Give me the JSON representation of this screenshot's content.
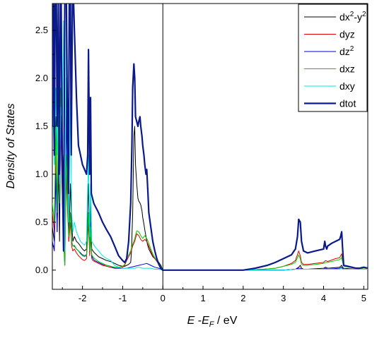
{
  "chart_data": {
    "type": "line",
    "title": "",
    "xlabel": {
      "italic_main": "E",
      "sep": " -",
      "italic_sub_base": "E",
      "sub": "F",
      "unit": " / eV"
    },
    "ylabel": "Density of States",
    "xlim": [
      -2.75,
      5.1
    ],
    "ylim": [
      -0.2,
      2.78
    ],
    "x_ticks": [
      -2,
      -1,
      0,
      1,
      2,
      3,
      4,
      5
    ],
    "x_tick_labels": [
      "-2",
      "-1",
      "0",
      "1",
      "2",
      "3",
      "4",
      "5"
    ],
    "y_ticks": [
      0.0,
      0.5,
      1.0,
      1.5,
      2.0,
      2.5
    ],
    "y_tick_labels": [
      "0.0",
      "0.5",
      "1.0",
      "1.5",
      "2.0",
      "2.5"
    ],
    "fermi_line_x": 0,
    "grid": false,
    "legend": {
      "position": "top-right",
      "entries": [
        {
          "base": "dx",
          "sup": "2",
          "mid": "-y",
          "sup2": "2"
        },
        {
          "base": "dyz"
        },
        {
          "base": "dz",
          "sup": "2"
        },
        {
          "base": "dxz"
        },
        {
          "base": "dxy"
        },
        {
          "base": "dtot"
        }
      ]
    },
    "series": [
      {
        "color": "#000000",
        "width": 1,
        "x": [
          -2.75,
          -2.7,
          -2.66,
          -2.63,
          -2.6,
          -2.57,
          -2.54,
          -2.5,
          -2.47,
          -2.44,
          -2.4,
          -2.37,
          -2.34,
          -2.3,
          -2.27,
          -2.24,
          -2.2,
          -2.15,
          -2.1,
          -2.05,
          -2.0,
          -1.95,
          -1.9,
          -1.85,
          -1.82,
          -1.8,
          -1.77,
          -1.74,
          -1.7,
          -1.6,
          -1.5,
          -1.4,
          -1.3,
          -1.2,
          -1.1,
          -1.0,
          -0.95,
          -0.9,
          -0.85,
          -0.8,
          -0.78,
          -0.75,
          -0.72,
          -0.7,
          -0.68,
          -0.65,
          -0.62,
          -0.6,
          -0.57,
          -0.55,
          -0.52,
          -0.5,
          -0.47,
          -0.45,
          -0.42,
          -0.4,
          -0.37,
          -0.35,
          -0.3,
          -0.25,
          -0.2,
          -0.15,
          -0.1,
          -0.05,
          0.0,
          0.5,
          1.0,
          1.5,
          2.0,
          2.5,
          3.0,
          3.3,
          3.38,
          3.42,
          3.45,
          3.5,
          3.6,
          4.0,
          4.05,
          4.1,
          4.4,
          4.45,
          4.47,
          4.5,
          4.8,
          5.1
        ],
        "y": [
          0.45,
          0.3,
          1.6,
          0.4,
          1.1,
          0.3,
          1.8,
          0.9,
          1.2,
          0.1,
          2.0,
          0.9,
          0.3,
          0.9,
          0.5,
          0.3,
          0.35,
          0.3,
          0.28,
          0.25,
          0.22,
          0.2,
          0.22,
          0.9,
          0.3,
          0.7,
          0.22,
          0.2,
          0.18,
          0.14,
          0.12,
          0.1,
          0.09,
          0.07,
          0.05,
          0.04,
          0.04,
          0.05,
          0.06,
          0.08,
          0.2,
          0.6,
          1.4,
          1.5,
          1.1,
          0.9,
          0.75,
          0.72,
          0.7,
          0.68,
          0.62,
          0.55,
          0.48,
          0.42,
          0.35,
          0.3,
          0.25,
          0.22,
          0.18,
          0.14,
          0.12,
          0.1,
          0.08,
          0.05,
          0.0,
          0.0,
          0.0,
          0.0,
          0.0,
          0.0,
          0.0,
          0.01,
          0.03,
          0.05,
          0.02,
          0.01,
          0.01,
          0.02,
          0.03,
          0.02,
          0.03,
          0.05,
          0.03,
          0.02,
          0.01,
          0.01
        ]
      },
      {
        "color": "#e00000",
        "width": 1,
        "x": [
          -2.75,
          -2.7,
          -2.66,
          -2.63,
          -2.6,
          -2.57,
          -2.54,
          -2.5,
          -2.47,
          -2.44,
          -2.4,
          -2.37,
          -2.34,
          -2.3,
          -2.27,
          -2.24,
          -2.2,
          -2.15,
          -2.1,
          -2.05,
          -2.0,
          -1.95,
          -1.9,
          -1.85,
          -1.82,
          -1.8,
          -1.77,
          -1.74,
          -1.7,
          -1.6,
          -1.5,
          -1.4,
          -1.3,
          -1.2,
          -1.1,
          -1.0,
          -0.95,
          -0.9,
          -0.85,
          -0.8,
          -0.75,
          -0.7,
          -0.65,
          -0.6,
          -0.55,
          -0.5,
          -0.45,
          -0.4,
          -0.35,
          -0.3,
          -0.25,
          -0.2,
          -0.1,
          0.0,
          0.5,
          1.0,
          1.5,
          2.0,
          2.5,
          2.8,
          3.0,
          3.2,
          3.3,
          3.38,
          3.42,
          3.45,
          3.5,
          3.6,
          3.8,
          4.0,
          4.05,
          4.1,
          4.3,
          4.4,
          4.45,
          4.47,
          4.5,
          4.8,
          5.1
        ],
        "y": [
          0.6,
          0.4,
          1.2,
          0.5,
          1.4,
          0.6,
          1.5,
          0.7,
          0.3,
          0.05,
          1.0,
          0.6,
          0.3,
          0.5,
          0.25,
          0.2,
          0.22,
          0.18,
          0.15,
          0.13,
          0.11,
          0.1,
          0.12,
          0.5,
          0.15,
          0.35,
          0.12,
          0.1,
          0.09,
          0.07,
          0.05,
          0.04,
          0.03,
          0.02,
          0.02,
          0.03,
          0.05,
          0.1,
          0.14,
          0.18,
          0.25,
          0.3,
          0.38,
          0.36,
          0.32,
          0.3,
          0.32,
          0.3,
          0.25,
          0.2,
          0.15,
          0.12,
          0.06,
          0.0,
          0.0,
          0.0,
          0.0,
          0.0,
          0.01,
          0.02,
          0.04,
          0.07,
          0.1,
          0.2,
          0.15,
          0.08,
          0.06,
          0.06,
          0.07,
          0.08,
          0.1,
          0.09,
          0.12,
          0.13,
          0.17,
          0.1,
          0.05,
          0.02,
          0.01
        ]
      },
      {
        "color": "#0000dd",
        "width": 1,
        "x": [
          -2.75,
          -2.7,
          -2.66,
          -2.63,
          -2.6,
          -2.57,
          -2.54,
          -2.5,
          -2.47,
          -2.44,
          -2.4,
          -2.37,
          -2.34,
          -2.3,
          -2.27,
          -2.24,
          -2.2,
          -2.15,
          -2.1,
          -2.05,
          -2.0,
          -1.95,
          -1.9,
          -1.85,
          -1.82,
          -1.8,
          -1.77,
          -1.74,
          -1.7,
          -1.6,
          -1.5,
          -1.4,
          -1.3,
          -1.2,
          -1.1,
          -1.0,
          -0.9,
          -0.8,
          -0.7,
          -0.6,
          -0.5,
          -0.4,
          -0.3,
          -0.2,
          -0.1,
          0.0,
          0.5,
          1.0,
          1.5,
          2.0,
          2.5,
          3.0,
          3.3,
          3.38,
          3.42,
          3.45,
          3.5,
          3.6,
          4.0,
          4.05,
          4.1,
          4.4,
          4.45,
          4.47,
          4.5,
          4.8,
          5.1
        ],
        "y": [
          0.3,
          0.2,
          1.0,
          0.4,
          1.3,
          0.5,
          1.6,
          0.8,
          0.5,
          0.05,
          1.7,
          0.8,
          0.4,
          0.6,
          0.3,
          0.25,
          0.25,
          0.22,
          0.2,
          0.18,
          0.16,
          0.15,
          0.16,
          0.6,
          0.2,
          0.5,
          0.15,
          0.12,
          0.1,
          0.08,
          0.06,
          0.05,
          0.04,
          0.02,
          0.02,
          0.02,
          0.02,
          0.03,
          0.04,
          0.05,
          0.06,
          0.07,
          0.05,
          0.03,
          0.02,
          0.0,
          0.0,
          0.0,
          0.0,
          0.0,
          0.0,
          0.0,
          0.01,
          0.02,
          0.02,
          0.01,
          0.01,
          0.01,
          0.01,
          0.02,
          0.01,
          0.02,
          0.03,
          0.02,
          0.01,
          0.01,
          0.01
        ]
      },
      {
        "color": "#00cc00",
        "width": 1,
        "x": [
          -2.75,
          -2.7,
          -2.66,
          -2.63,
          -2.6,
          -2.57,
          -2.54,
          -2.5,
          -2.47,
          -2.44,
          -2.4,
          -2.37,
          -2.34,
          -2.3,
          -2.27,
          -2.24,
          -2.2,
          -2.15,
          -2.1,
          -2.05,
          -2.0,
          -1.95,
          -1.9,
          -1.85,
          -1.82,
          -1.8,
          -1.77,
          -1.74,
          -1.7,
          -1.6,
          -1.5,
          -1.4,
          -1.3,
          -1.2,
          -1.1,
          -1.0,
          -0.95,
          -0.9,
          -0.85,
          -0.8,
          -0.75,
          -0.7,
          -0.65,
          -0.6,
          -0.55,
          -0.5,
          -0.45,
          -0.4,
          -0.35,
          -0.3,
          -0.25,
          -0.2,
          -0.1,
          0.0,
          0.5,
          1.0,
          1.5,
          2.0,
          2.5,
          2.8,
          3.0,
          3.2,
          3.3,
          3.38,
          3.42,
          3.45,
          3.5,
          3.6,
          3.8,
          4.0,
          4.05,
          4.1,
          4.3,
          4.4,
          4.45,
          4.47,
          4.5,
          4.8,
          5.1
        ],
        "y": [
          0.7,
          0.5,
          1.5,
          0.6,
          1.6,
          0.7,
          1.9,
          1.0,
          0.4,
          0.05,
          1.2,
          0.7,
          0.35,
          0.6,
          0.3,
          0.25,
          0.26,
          0.22,
          0.2,
          0.17,
          0.15,
          0.14,
          0.15,
          0.6,
          0.2,
          0.45,
          0.16,
          0.14,
          0.12,
          0.09,
          0.07,
          0.05,
          0.04,
          0.03,
          0.03,
          0.04,
          0.06,
          0.12,
          0.16,
          0.2,
          0.27,
          0.33,
          0.41,
          0.4,
          0.36,
          0.33,
          0.36,
          0.33,
          0.28,
          0.22,
          0.17,
          0.13,
          0.07,
          0.0,
          0.0,
          0.0,
          0.0,
          0.0,
          0.01,
          0.02,
          0.04,
          0.06,
          0.08,
          0.16,
          0.12,
          0.06,
          0.05,
          0.05,
          0.06,
          0.07,
          0.08,
          0.08,
          0.1,
          0.11,
          0.13,
          0.09,
          0.04,
          0.02,
          0.01
        ]
      },
      {
        "color": "#00e5e5",
        "width": 1,
        "x": [
          -2.75,
          -2.7,
          -2.66,
          -2.63,
          -2.6,
          -2.57,
          -2.54,
          -2.5,
          -2.47,
          -2.44,
          -2.4,
          -2.37,
          -2.34,
          -2.3,
          -2.27,
          -2.24,
          -2.2,
          -2.15,
          -2.1,
          -2.05,
          -2.0,
          -1.95,
          -1.9,
          -1.85,
          -1.82,
          -1.8,
          -1.77,
          -1.74,
          -1.7,
          -1.6,
          -1.5,
          -1.4,
          -1.3,
          -1.2,
          -1.1,
          -1.0,
          -0.9,
          -0.8,
          -0.7,
          -0.6,
          -0.5,
          -0.4,
          -0.3,
          -0.2,
          -0.1,
          0.0,
          0.5,
          1.0,
          1.5,
          2.0,
          2.5,
          3.0,
          3.3,
          3.38,
          3.42,
          3.45,
          3.5,
          3.6,
          4.0,
          4.05,
          4.1,
          4.4,
          4.45,
          4.47,
          4.5,
          4.8,
          5.1
        ],
        "y": [
          1.85,
          1.1,
          1.9,
          1.2,
          2.0,
          0.9,
          1.7,
          1.5,
          2.6,
          0.2,
          2.7,
          1.3,
          0.5,
          1.8,
          0.6,
          0.4,
          0.5,
          0.4,
          0.35,
          0.3,
          0.28,
          0.26,
          0.3,
          1.2,
          0.35,
          0.9,
          0.3,
          0.28,
          0.25,
          0.2,
          0.15,
          0.12,
          0.1,
          0.05,
          0.03,
          0.02,
          0.02,
          0.02,
          0.02,
          0.03,
          0.02,
          0.02,
          0.02,
          0.01,
          0.01,
          0.0,
          0.0,
          0.0,
          0.0,
          0.0,
          0.0,
          0.0,
          0.01,
          0.01,
          0.01,
          0.01,
          0.01,
          0.01,
          0.01,
          0.01,
          0.01,
          0.01,
          0.02,
          0.01,
          0.01,
          0.01,
          0.01
        ]
      },
      {
        "color": "#0a1a8a",
        "width": 2.2,
        "x": [
          -2.75,
          -2.72,
          -2.7,
          -2.68,
          -2.65,
          -2.63,
          -2.6,
          -2.58,
          -2.55,
          -2.53,
          -2.5,
          -2.47,
          -2.44,
          -2.4,
          -2.38,
          -2.35,
          -2.33,
          -2.3,
          -2.28,
          -2.25,
          -2.22,
          -2.2,
          -2.15,
          -2.1,
          -2.05,
          -2.0,
          -1.95,
          -1.9,
          -1.87,
          -1.85,
          -1.82,
          -1.8,
          -1.78,
          -1.75,
          -1.72,
          -1.7,
          -1.6,
          -1.5,
          -1.4,
          -1.3,
          -1.2,
          -1.1,
          -1.0,
          -0.95,
          -0.9,
          -0.85,
          -0.8,
          -0.77,
          -0.75,
          -0.72,
          -0.7,
          -0.68,
          -0.65,
          -0.62,
          -0.6,
          -0.57,
          -0.55,
          -0.52,
          -0.5,
          -0.47,
          -0.45,
          -0.42,
          -0.4,
          -0.37,
          -0.35,
          -0.3,
          -0.25,
          -0.2,
          -0.15,
          -0.1,
          -0.05,
          0.0,
          0.5,
          1.0,
          1.5,
          2.0,
          2.3,
          2.6,
          2.8,
          3.0,
          3.2,
          3.3,
          3.35,
          3.38,
          3.42,
          3.45,
          3.5,
          3.6,
          3.8,
          4.0,
          4.03,
          4.05,
          4.08,
          4.1,
          4.2,
          4.3,
          4.4,
          4.43,
          4.45,
          4.47,
          4.5,
          4.7,
          4.8,
          4.9,
          5.0,
          5.1
        ],
        "y": [
          1.5,
          2.78,
          1.2,
          2.78,
          2.78,
          1.5,
          2.78,
          1.0,
          2.78,
          2.78,
          1.0,
          0.2,
          2.78,
          2.78,
          1.8,
          0.8,
          2.78,
          2.78,
          1.2,
          2.78,
          2.78,
          2.5,
          1.8,
          1.3,
          1.2,
          1.1,
          1.05,
          1.0,
          1.2,
          2.3,
          1.0,
          1.8,
          0.8,
          0.75,
          0.7,
          0.68,
          0.6,
          0.5,
          0.42,
          0.35,
          0.25,
          0.15,
          0.1,
          0.08,
          0.12,
          0.3,
          0.7,
          1.3,
          1.9,
          2.15,
          2.0,
          1.6,
          1.55,
          1.5,
          1.55,
          1.6,
          1.5,
          1.4,
          1.3,
          1.2,
          1.1,
          1.0,
          1.05,
          0.8,
          0.6,
          0.45,
          0.3,
          0.2,
          0.12,
          0.06,
          0.02,
          0.0,
          0.0,
          0.0,
          0.0,
          0.0,
          0.02,
          0.05,
          0.08,
          0.12,
          0.16,
          0.22,
          0.35,
          0.53,
          0.5,
          0.3,
          0.2,
          0.18,
          0.2,
          0.22,
          0.3,
          0.25,
          0.22,
          0.25,
          0.28,
          0.3,
          0.32,
          0.36,
          0.4,
          0.25,
          0.05,
          0.03,
          0.02,
          0.02,
          0.03,
          0.02
        ]
      }
    ]
  }
}
